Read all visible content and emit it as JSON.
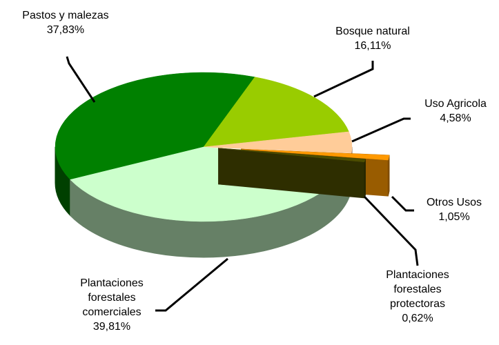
{
  "chart_data": {
    "type": "pie",
    "categories": [
      "Pastos y malezas",
      "Bosque natural",
      "Uso Agricola",
      "Otros Usos",
      "Plantaciones\nforestales\nprotectoras",
      "Plantaciones\nforestales\ncomerciales"
    ],
    "values": [
      37.83,
      16.11,
      4.58,
      1.05,
      0.62,
      39.81
    ],
    "value_labels": [
      "37,83%",
      "16,11%",
      "4,58%",
      "1,05%",
      "0,62%",
      "39,81%"
    ],
    "colors": [
      "#008000",
      "#99cc00",
      "#ffcc99",
      "#ff9900",
      "#4d4d00",
      "#ccffcc"
    ]
  }
}
